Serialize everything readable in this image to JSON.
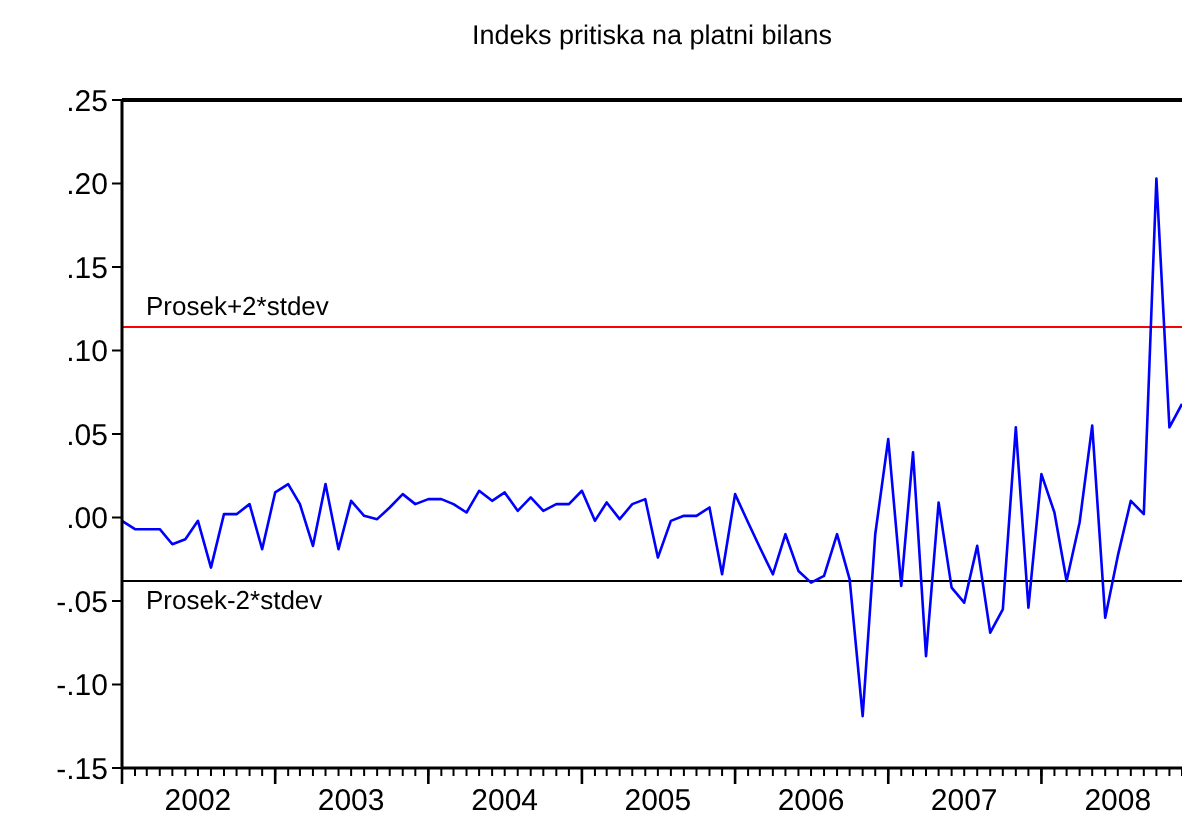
{
  "chart_data": {
    "type": "line",
    "title": "Indeks pritiska na platni bilans",
    "x": [
      "2002-01",
      "2002-02",
      "2002-03",
      "2002-04",
      "2002-05",
      "2002-06",
      "2002-07",
      "2002-08",
      "2002-09",
      "2002-10",
      "2002-11",
      "2002-12",
      "2003-01",
      "2003-02",
      "2003-03",
      "2003-04",
      "2003-05",
      "2003-06",
      "2003-07",
      "2003-08",
      "2003-09",
      "2003-10",
      "2003-11",
      "2003-12",
      "2004-01",
      "2004-02",
      "2004-03",
      "2004-04",
      "2004-05",
      "2004-06",
      "2004-07",
      "2004-08",
      "2004-09",
      "2004-10",
      "2004-11",
      "2004-12",
      "2005-01",
      "2005-02",
      "2005-03",
      "2005-04",
      "2005-05",
      "2005-06",
      "2005-07",
      "2005-08",
      "2005-09",
      "2005-10",
      "2005-11",
      "2005-12",
      "2006-01",
      "2006-02",
      "2006-03",
      "2006-04",
      "2006-05",
      "2006-06",
      "2006-07",
      "2006-08",
      "2006-09",
      "2006-10",
      "2006-11",
      "2006-12",
      "2007-01",
      "2007-02",
      "2007-03",
      "2007-04",
      "2007-05",
      "2007-06",
      "2007-07",
      "2007-08",
      "2007-09",
      "2007-10",
      "2007-11",
      "2007-12",
      "2008-01",
      "2008-02",
      "2008-03",
      "2008-04",
      "2008-05",
      "2008-06",
      "2008-07",
      "2008-08",
      "2008-09",
      "2008-10",
      "2008-11",
      "2008-12"
    ],
    "series": [
      {
        "color": "#0000ff",
        "values": [
          -0.002,
          -0.007,
          -0.007,
          -0.007,
          -0.016,
          -0.013,
          -0.002,
          -0.03,
          0.002,
          0.002,
          0.008,
          -0.019,
          0.015,
          0.02,
          0.008,
          -0.017,
          0.02,
          -0.019,
          0.01,
          0.001,
          -0.001,
          0.006,
          0.014,
          0.008,
          0.011,
          0.011,
          0.008,
          0.003,
          0.016,
          0.01,
          0.015,
          0.004,
          0.012,
          0.004,
          0.008,
          0.008,
          0.016,
          -0.002,
          0.009,
          -0.001,
          0.008,
          0.011,
          -0.024,
          -0.002,
          0.001,
          0.001,
          0.006,
          -0.034,
          0.014,
          -0.003,
          -0.018,
          -0.034,
          -0.01,
          -0.032,
          -0.039,
          -0.035,
          -0.01,
          -0.037,
          -0.119,
          -0.01,
          0.047,
          -0.041,
          0.039,
          -0.083,
          0.009,
          -0.042,
          -0.051,
          -0.017,
          -0.069,
          -0.055,
          0.054,
          -0.054,
          0.026,
          0.003,
          -0.038,
          -0.003,
          0.055,
          -0.06,
          -0.023,
          0.01,
          0.002,
          0.203,
          0.054,
          0.068
        ]
      }
    ],
    "xlim": [
      "2002-01",
      "2008-12"
    ],
    "xticks": [
      {
        "value": "2002-01",
        "label": null
      },
      {
        "value": "2002-07",
        "label": "2002"
      },
      {
        "value": "2003-01",
        "label": null
      },
      {
        "value": "2003-07",
        "label": "2003"
      },
      {
        "value": "2004-01",
        "label": null
      },
      {
        "value": "2004-07",
        "label": "2004"
      },
      {
        "value": "2005-01",
        "label": null
      },
      {
        "value": "2005-07",
        "label": "2005"
      },
      {
        "value": "2006-01",
        "label": null
      },
      {
        "value": "2006-07",
        "label": "2006"
      },
      {
        "value": "2007-01",
        "label": null
      },
      {
        "value": "2007-07",
        "label": "2007"
      },
      {
        "value": "2008-01",
        "label": null
      },
      {
        "value": "2008-07",
        "label": "2008"
      }
    ],
    "ylim": [
      -0.15,
      0.25
    ],
    "yticks": [
      {
        "value": -0.15,
        "label": "-.15"
      },
      {
        "value": -0.1,
        "label": "-.10"
      },
      {
        "value": -0.05,
        "label": "-.05"
      },
      {
        "value": 0,
        "label": ".00"
      },
      {
        "value": 0.05,
        "label": ".05"
      },
      {
        "value": 0.1,
        "label": ".10"
      },
      {
        "value": 0.15,
        "label": ".15"
      },
      {
        "value": 0.2,
        "label": ".20"
      },
      {
        "value": 0.25,
        "label": ".25"
      }
    ],
    "ref_lines": [
      {
        "axis": "y",
        "value": 0.114,
        "label": "Prosek+2*stdev",
        "color": "#ff0000"
      },
      {
        "axis": "y",
        "value": -0.038,
        "label": "Prosek-2*stdev",
        "color": "#000000"
      }
    ],
    "grid": false,
    "marker": "none",
    "line_style": "solid"
  }
}
